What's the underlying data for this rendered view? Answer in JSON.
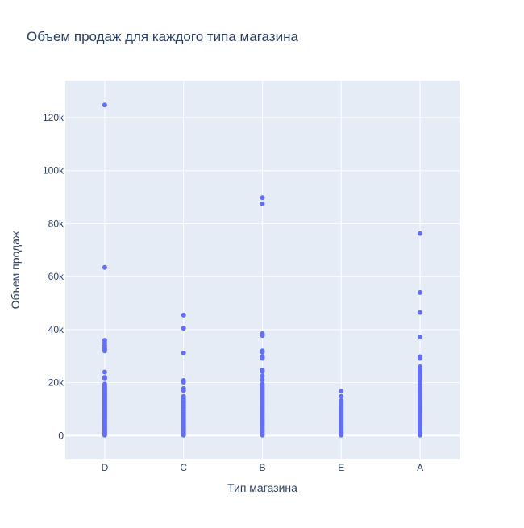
{
  "chart_data": {
    "type": "scatter",
    "title": "Объем продаж для каждого типа магазина",
    "xlabel": "Тип магазина",
    "ylabel": "Объем продаж",
    "categories": [
      "D",
      "C",
      "B",
      "E",
      "A"
    ],
    "ylim": [
      -9000,
      134000
    ],
    "y_ticks": [
      0,
      20000,
      40000,
      60000,
      80000,
      100000,
      120000
    ],
    "y_tick_labels": [
      "0",
      "20k",
      "40k",
      "60k",
      "80k",
      "100k",
      "120k"
    ],
    "grid": true,
    "legend": "none",
    "marker_color": "#636efa",
    "plot_bg": "#e5ecf6",
    "series": [
      {
        "category": "D",
        "values": [
          124800,
          63500,
          36000,
          35000,
          34000,
          33000,
          32500,
          32000,
          24000,
          22000,
          21500,
          19500,
          19000,
          18500,
          18000,
          17500,
          17000,
          16500,
          16000,
          15500,
          15000,
          14500,
          14000,
          13500,
          13000,
          12500,
          12000,
          11500,
          11000,
          10500,
          10000,
          9500,
          9000,
          8500,
          8000,
          7500,
          7000,
          6500,
          6000,
          5500,
          5000,
          4500,
          4000,
          3500,
          3000,
          2500,
          2000,
          1500,
          1000,
          500,
          200
        ]
      },
      {
        "category": "C",
        "values": [
          45500,
          40500,
          31200,
          20800,
          20200,
          17800,
          17000,
          14800,
          14200,
          13600,
          13000,
          12400,
          11800,
          11200,
          10600,
          10000,
          9400,
          8800,
          8200,
          7600,
          7000,
          6400,
          5800,
          5200,
          4600,
          4000,
          3400,
          2800,
          2200,
          1600,
          1000,
          500,
          200
        ]
      },
      {
        "category": "B",
        "values": [
          89800,
          87500,
          38500,
          37800,
          32000,
          31500,
          29800,
          29200,
          24800,
          24200,
          22500,
          21000,
          19500,
          18800,
          18000,
          17200,
          16500,
          15800,
          15000,
          14200,
          13500,
          12800,
          12000,
          11200,
          10500,
          9800,
          9000,
          8200,
          7500,
          6800,
          6000,
          5200,
          4500,
          3800,
          3000,
          2200,
          1500,
          800,
          200
        ]
      },
      {
        "category": "E",
        "values": [
          16800,
          14800,
          13200,
          12600,
          12000,
          11400,
          10800,
          10200,
          9600,
          9000,
          8400,
          7800,
          7200,
          6600,
          6000,
          5400,
          4800,
          4200,
          3600,
          3000,
          2400,
          1800,
          1200,
          600,
          200
        ]
      },
      {
        "category": "A",
        "values": [
          76300,
          54000,
          46500,
          37200,
          29800,
          29200,
          26000,
          25500,
          25000,
          24500,
          24000,
          23500,
          23000,
          22500,
          22000,
          21500,
          21000,
          20500,
          20000,
          19500,
          19000,
          18500,
          18000,
          17500,
          17000,
          16500,
          16000,
          15500,
          15000,
          14500,
          14000,
          13500,
          13000,
          12500,
          12000,
          11500,
          11000,
          10500,
          10000,
          9500,
          9000,
          8500,
          8000,
          7500,
          7000,
          6500,
          6000,
          5500,
          5000,
          4500,
          4000,
          3500,
          3000,
          2500,
          2000,
          1500,
          1000,
          500,
          200
        ]
      }
    ]
  }
}
